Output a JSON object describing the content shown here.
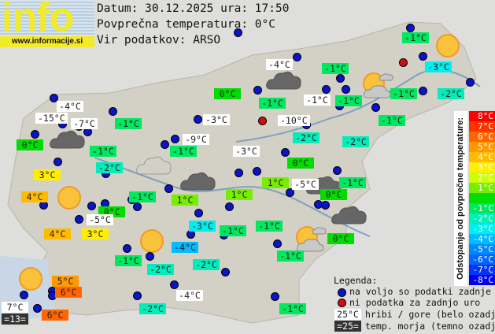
{
  "logo": {
    "word": "info",
    "url": "www.informacije.si"
  },
  "header": {
    "date_line": "Datum: 30.12.2025 ura: 17:50",
    "avg_line": "Povprečna temperatura: 0°C",
    "source_line": "Vir podatkov: ARSO"
  },
  "colors": {
    "mountain": "#ffffff",
    "sea": "#333333",
    "dot_available": "#0a14c8",
    "dot_missing": "#d01010",
    "dev": {
      "8": "#ff0000",
      "7": "#ff3300",
      "6": "#ff6600",
      "5": "#ff9900",
      "4": "#ffbb00",
      "3": "#ffee00",
      "2": "#ccff00",
      "1": "#77ee00",
      "0": "#00dd00",
      "-1": "#00e860",
      "-2": "#00eebb",
      "-3": "#00eeee",
      "-4": "#00bbff",
      "-5": "#0088ff",
      "-6": "#0066ff",
      "-7": "#0033ff",
      "-8": "#0000ee"
    }
  },
  "stations": [
    {
      "t": "-4°C",
      "c": "mountain"
    },
    {
      "t": "-15°C",
      "c": "mountain"
    },
    {
      "t": "-7°C",
      "c": "mountain"
    },
    {
      "t": "-1°C",
      "c": "-1"
    },
    {
      "t": "0°C",
      "c": "0"
    },
    {
      "t": "-1°C",
      "c": "-1"
    },
    {
      "t": "-3°C",
      "c": "mountain"
    },
    {
      "t": "-9°C",
      "c": "mountain"
    },
    {
      "t": "-1°C",
      "c": "-1"
    },
    {
      "t": "0°C",
      "c": "0"
    },
    {
      "t": "-2°C",
      "c": "-2"
    },
    {
      "t": "3°C",
      "c": "3"
    },
    {
      "t": "4°C",
      "c": "4"
    },
    {
      "t": "0°C",
      "c": "0"
    },
    {
      "t": "-1°C",
      "c": "-1"
    },
    {
      "t": "1°C",
      "c": "1"
    },
    {
      "t": "-5°C",
      "c": "mountain"
    },
    {
      "t": "4°C",
      "c": "4"
    },
    {
      "t": "3°C",
      "c": "3"
    },
    {
      "t": "-3°C",
      "c": "-3"
    },
    {
      "t": "-1°C",
      "c": "-1"
    },
    {
      "t": "-4°C",
      "c": "-4"
    },
    {
      "t": "-1°C",
      "c": "-1"
    },
    {
      "t": "-2°C",
      "c": "-2"
    },
    {
      "t": "-2°C",
      "c": "-2"
    },
    {
      "t": "5°C",
      "c": "5"
    },
    {
      "t": "6°C",
      "c": "6"
    },
    {
      "t": "7°C",
      "c": "mountain"
    },
    {
      "t": "=13=",
      "c": "sea"
    },
    {
      "t": "6°C",
      "c": "6"
    },
    {
      "t": "-4°C",
      "c": "mountain"
    },
    {
      "t": "-2°C",
      "c": "-2"
    },
    {
      "t": "-4°C",
      "c": "mountain"
    },
    {
      "t": "-1°C",
      "c": "-1"
    },
    {
      "t": "-1°C",
      "c": "-1"
    },
    {
      "t": "-1°C",
      "c": "mountain"
    },
    {
      "t": "-1°C",
      "c": "-1"
    },
    {
      "t": "-10°C",
      "c": "mountain"
    },
    {
      "t": "-2°C",
      "c": "-2"
    },
    {
      "t": "-2°C",
      "c": "-2"
    },
    {
      "t": "-3°C",
      "c": "mountain"
    },
    {
      "t": "-1°C",
      "c": "-1"
    },
    {
      "t": "-3°C",
      "c": "-3"
    },
    {
      "t": "-1°C",
      "c": "-1"
    },
    {
      "t": "-2°C",
      "c": "-2"
    },
    {
      "t": "-1°C",
      "c": "-1"
    },
    {
      "t": "0°C",
      "c": "0"
    },
    {
      "t": "1°C",
      "c": "1"
    },
    {
      "t": "-5°C",
      "c": "mountain"
    },
    {
      "t": "-1°C",
      "c": "-1"
    },
    {
      "t": "0°C",
      "c": "0"
    },
    {
      "t": "1°C",
      "c": "1"
    },
    {
      "t": "-1°C",
      "c": "-1"
    },
    {
      "t": "0°C",
      "c": "0"
    },
    {
      "t": "-1°C",
      "c": "-1"
    },
    {
      "t": "-1°C",
      "c": "-1"
    }
  ],
  "weather_icons": [
    "cloudy",
    "cloudy",
    "cloudy",
    "cloudy",
    "cloudy",
    "drizzle",
    "partly-cloudy",
    "partly-cloudy",
    "sunny",
    "sunny",
    "sunny",
    "sunny"
  ],
  "scale": {
    "title": "Odstopanje od povprečne temperature:",
    "levels": [
      {
        "label": "8°C",
        "c": "8"
      },
      {
        "label": "7°C",
        "c": "7"
      },
      {
        "label": "6°C",
        "c": "6"
      },
      {
        "label": "5°C",
        "c": "5"
      },
      {
        "label": "4°C",
        "c": "4"
      },
      {
        "label": "3°C",
        "c": "3"
      },
      {
        "label": "2°C",
        "c": "2"
      },
      {
        "label": "1°C",
        "c": "1"
      },
      {
        "label": "",
        "c": "0"
      },
      {
        "label": "-1°C",
        "c": "-1"
      },
      {
        "label": "-2°C",
        "c": "-2"
      },
      {
        "label": "-3°C",
        "c": "-3"
      },
      {
        "label": "-4°C",
        "c": "-4"
      },
      {
        "label": "-5°C",
        "c": "-5"
      },
      {
        "label": "-6°C",
        "c": "-6"
      },
      {
        "label": "-7°C",
        "c": "-7"
      },
      {
        "label": "-8°C",
        "c": "-8"
      }
    ]
  },
  "legend": {
    "title": "Legenda:",
    "available": "na voljo so podatki zadnje ure",
    "missing": "ni podatka za zadnjo uro",
    "mountain_sample": "25°C",
    "mountain_text": "hribi / gore (belo ozadje)",
    "sea_sample": "=25=",
    "sea_text": "temp. morja (temno ozadje)"
  }
}
